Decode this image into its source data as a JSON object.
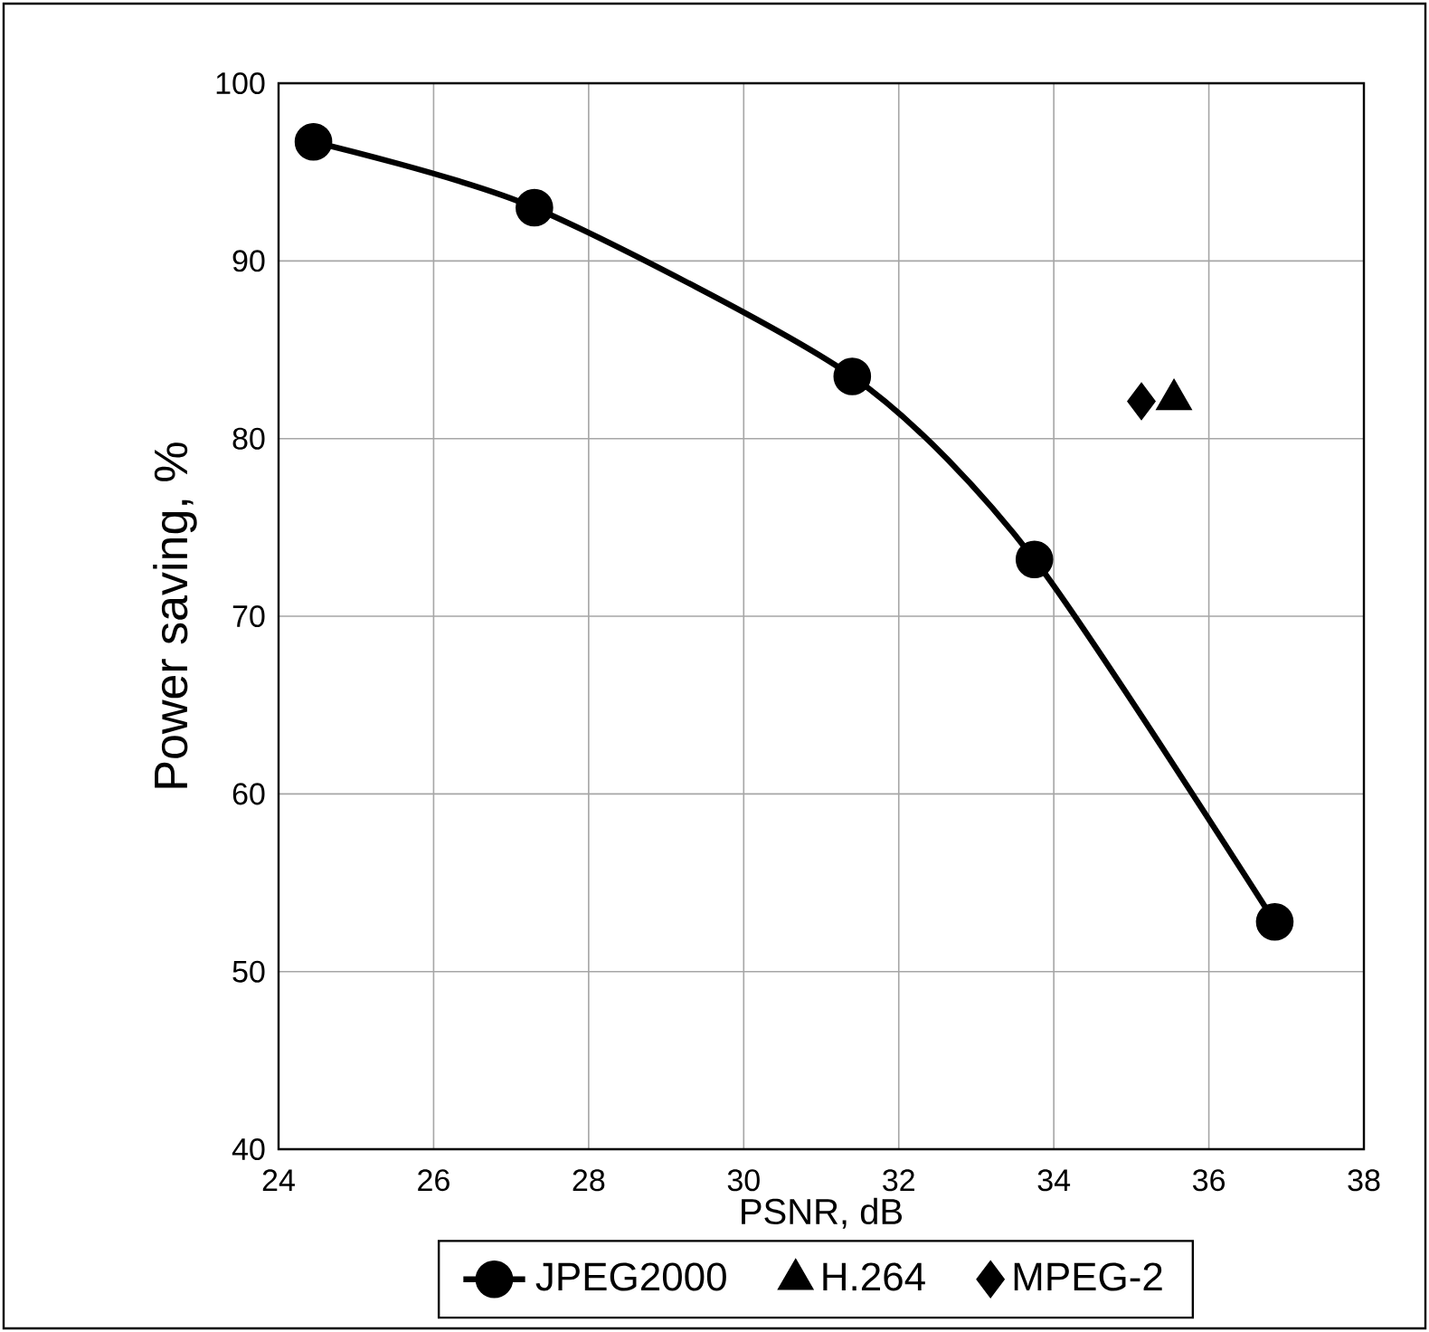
{
  "chart_data": {
    "type": "line",
    "xlabel": "PSNR, dB",
    "ylabel": "Power saving, %",
    "xlim": [
      24,
      38
    ],
    "xticks": [
      24,
      26,
      28,
      30,
      32,
      34,
      36,
      38
    ],
    "ylim": [
      40,
      100
    ],
    "yticks": [
      40,
      50,
      60,
      70,
      80,
      90,
      100
    ],
    "grid": true,
    "legend": "bottom",
    "series": [
      {
        "name": "JPEG2000",
        "marker": "circle",
        "color": "#000000",
        "x": [
          24.45,
          27.3,
          31.4,
          33.75,
          36.85
        ],
        "values": [
          96.7,
          93.0,
          83.5,
          73.2,
          52.8
        ]
      },
      {
        "name": "H.264",
        "type": "scatter",
        "marker": "triangle",
        "color": "#000000",
        "x": [
          35.55
        ],
        "values": [
          82.2
        ]
      },
      {
        "name": "MPEG-2",
        "type": "scatter",
        "marker": "diamond",
        "color": "#000000",
        "x": [
          35.13
        ],
        "values": [
          82.1
        ]
      }
    ]
  }
}
